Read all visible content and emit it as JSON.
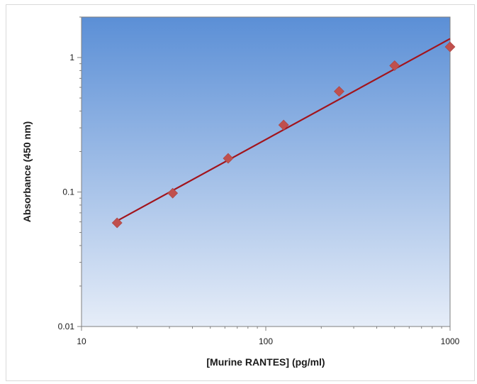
{
  "chart_data": {
    "type": "scatter",
    "title": "",
    "xlabel": "[Murine RANTES] (pg/ml)",
    "ylabel": "Absorbance (450 nm)",
    "x_scale": "log",
    "y_scale": "log",
    "xlim": [
      10,
      1000
    ],
    "ylim": [
      0.01,
      2
    ],
    "x_ticks": [
      10,
      100,
      1000
    ],
    "x_tick_labels": [
      "10",
      "100",
      "1000"
    ],
    "y_ticks": [
      0.01,
      0.1,
      1
    ],
    "y_tick_labels": [
      "0.01",
      "0.1",
      "1"
    ],
    "grid": false,
    "legend": "none",
    "series": [
      {
        "x": [
          15.6,
          31.25,
          62.5,
          125,
          250,
          500,
          1000
        ],
        "y": [
          0.059,
          0.098,
          0.178,
          0.315,
          0.56,
          0.87,
          1.2
        ],
        "marker": "diamond",
        "color": "#c0504d"
      }
    ],
    "trendline": {
      "type": "power",
      "x": [
        15.6,
        1000
      ],
      "y": [
        0.061,
        1.38
      ],
      "color": "#a2141c"
    },
    "plot_background": {
      "top": "#5b8fd6",
      "bottom": "#e6edf8"
    }
  }
}
